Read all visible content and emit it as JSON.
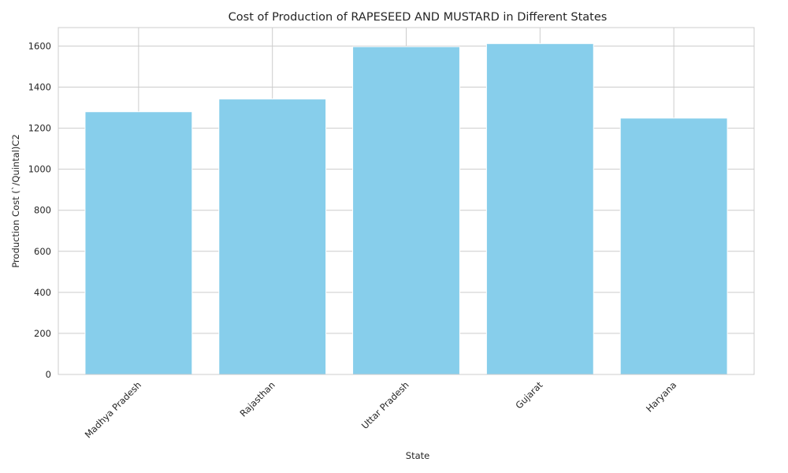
{
  "chart_data": {
    "type": "bar",
    "title": "Cost of Production of RAPESEED AND MUSTARD in Different States",
    "xlabel": "State",
    "ylabel": "Production Cost (`/Quintal)C2",
    "categories": [
      "Madhya Pradesh",
      "Rajasthan",
      "Uttar Pradesh",
      "Gujarat",
      "Haryana"
    ],
    "values": [
      1280,
      1342,
      1597,
      1612,
      1249
    ],
    "ylim": [
      0,
      1690
    ],
    "yticks": [
      0,
      200,
      400,
      600,
      800,
      1000,
      1200,
      1400,
      1600
    ],
    "grid": true,
    "bar_color": "#87ceeb",
    "x_tick_rotation_deg": 45
  }
}
